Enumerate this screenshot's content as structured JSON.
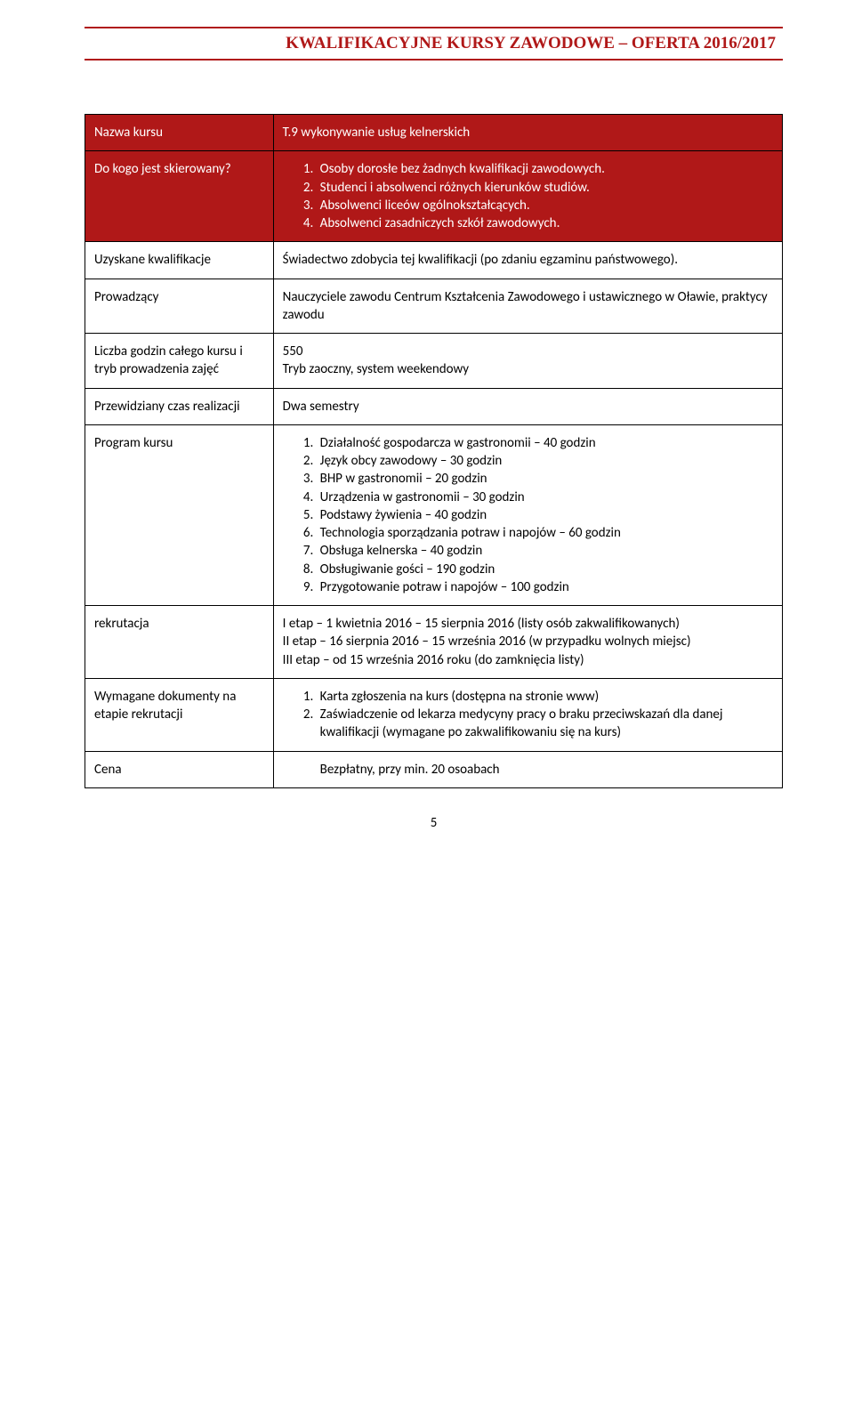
{
  "colors": {
    "accent": "#b01818",
    "text": "#000000",
    "bg": "#ffffff",
    "border": "#000000"
  },
  "header": {
    "title": "KWALIFIKACYJNE KURSY ZAWODOWE – OFERTA 2016/2017"
  },
  "course": {
    "name_label": "Nazwa kursu",
    "name_value": "T.9 wykonywanie usług kelnerskich",
    "target_label": "Do kogo jest skierowany?",
    "target_items": [
      "Osoby dorosłe bez żadnych kwalifikacji zawodowych.",
      "Studenci i absolwenci różnych kierunków studiów.",
      "Absolwenci liceów ogólnokształcących.",
      "Absolwenci zasadniczych szkół zawodowych."
    ],
    "quals_label": "Uzyskane kwalifikacje",
    "quals_value": "Świadectwo zdobycia tej kwalifikacji (po zdaniu egzaminu państwowego).",
    "lecturers_label": "Prowadzący",
    "lecturers_value": "Nauczyciele zawodu Centrum Kształcenia Zawodowego i ustawicznego w Oławie, praktycy zawodu",
    "hours_label": "Liczba godzin całego kursu i tryb prowadzenia zajęć",
    "hours_line1": "550",
    "hours_line2": "Tryb zaoczny, system weekendowy",
    "duration_label": "Przewidziany czas realizacji",
    "duration_value": " Dwa semestry",
    "program_label": "Program kursu",
    "program_items": [
      "Działalność gospodarcza w gastronomii – 40 godzin",
      "Język obcy zawodowy – 30 godzin",
      "BHP w gastronomii – 20 godzin",
      "Urządzenia w gastronomii – 30 godzin",
      "Podstawy żywienia – 40 godzin",
      "Technologia sporządzania potraw i napojów – 60 godzin",
      "Obsługa kelnerska – 40 godzin",
      "Obsługiwanie gości – 190 godzin",
      "Przygotowanie potraw i napojów – 100 godzin"
    ],
    "recruit_label": "rekrutacja",
    "recruit_line1": "I etap – 1 kwietnia 2016 – 15 sierpnia 2016 (listy osób zakwalifikowanych)",
    "recruit_line2": "II etap – 16 sierpnia 2016 – 15 września 2016 (w przypadku wolnych miejsc)",
    "recruit_line3": "III etap – od 15 września 2016 roku (do zamknięcia listy)",
    "docs_label": "Wymagane dokumenty na etapie rekrutacji",
    "docs_item1": "Karta zgłoszenia na kurs (dostępna na stronie www)",
    "docs_item2": "Zaświadczenie od lekarza medycyny pracy o braku przeciwskazań dla danej kwalifikacji (wymagane po zakwalifikowaniu się na kurs)",
    "price_label": "Cena",
    "price_value": "Bezpłatny, przy min. 20 osoabach"
  },
  "page_number": "5"
}
